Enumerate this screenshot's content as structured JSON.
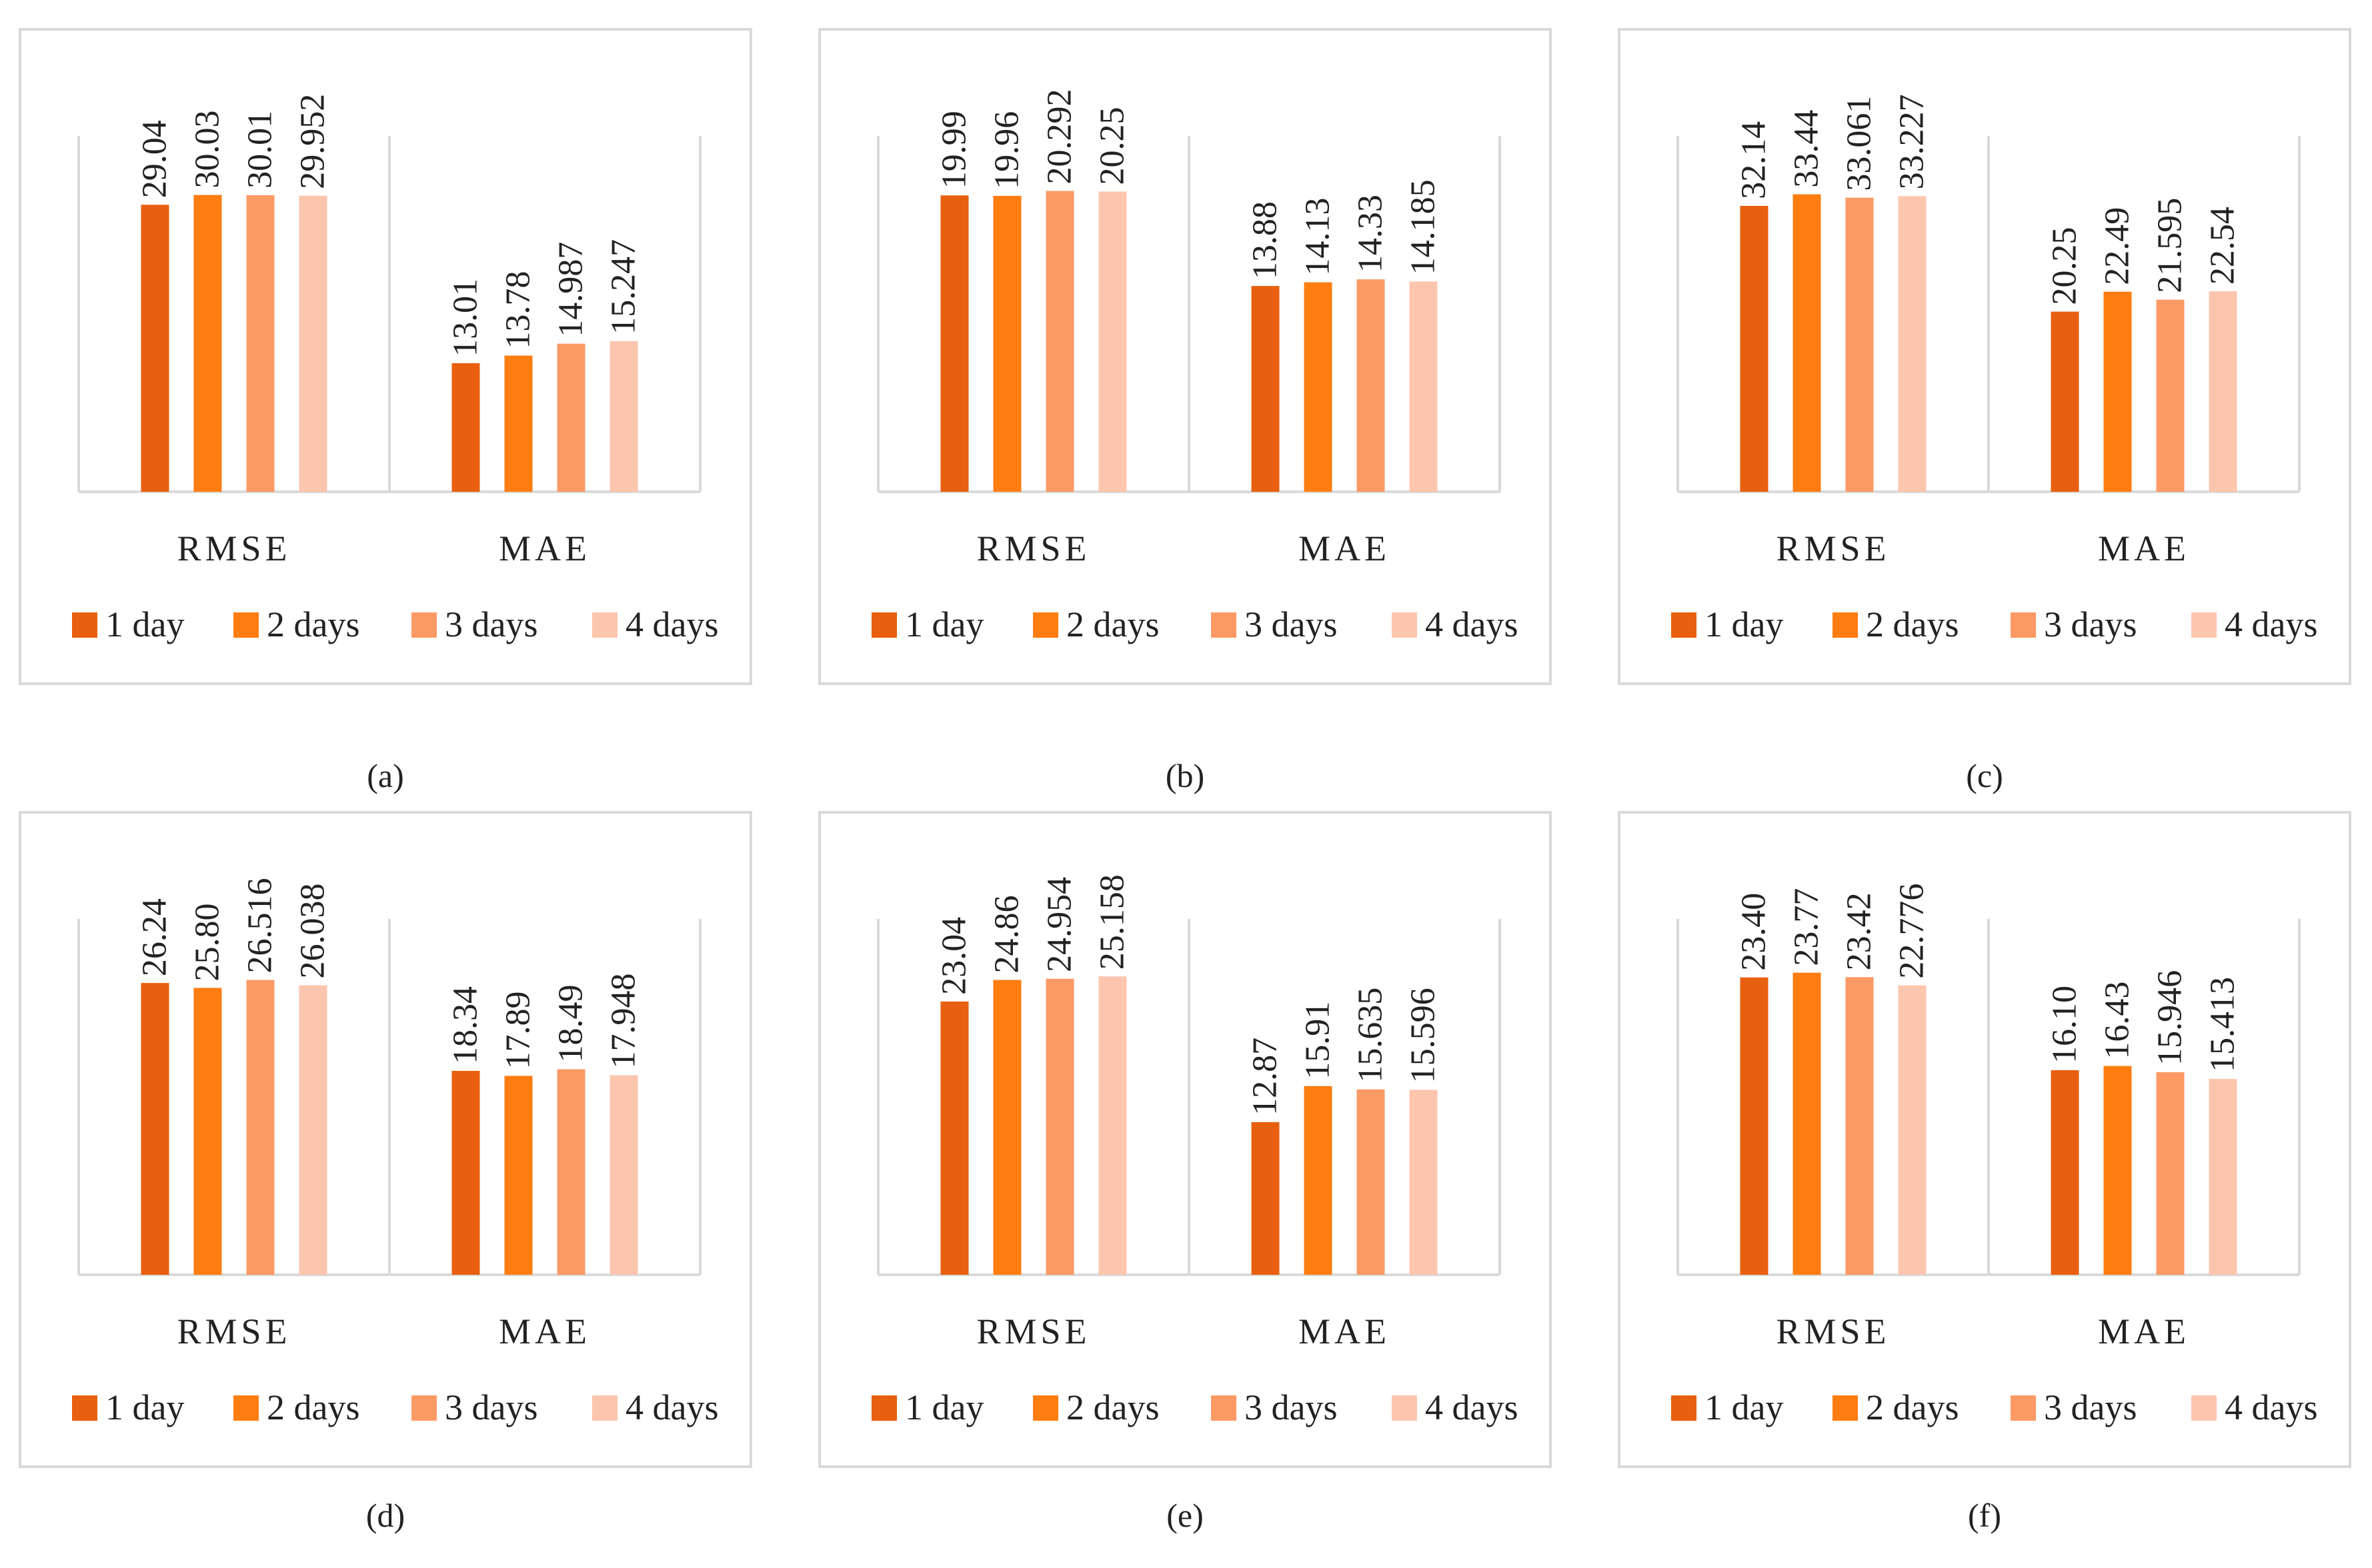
{
  "colors": {
    "series": [
      "#e8600f",
      "#ff7d11",
      "#fb9a65",
      "#fcc6ae"
    ],
    "axis": "#d9d9d9",
    "text": "#222222"
  },
  "charts": [
    {
      "caption": "(a)",
      "chart_data": {
        "type": "bar",
        "categories": [
          "RMSE",
          "MAE"
        ],
        "ylim": [
          0,
          36
        ],
        "legend": "bottom",
        "grid": false,
        "series": [
          {
            "name": "1 day",
            "values": [
              29.04,
              13.01
            ],
            "labels": [
              "29.04",
              "13.01"
            ]
          },
          {
            "name": "2 days",
            "values": [
              30.03,
              13.78
            ],
            "labels": [
              "30.03",
              "13.78"
            ]
          },
          {
            "name": "3 days",
            "values": [
              30.01,
              14.987
            ],
            "labels": [
              "30.01",
              "14.987"
            ]
          },
          {
            "name": "4 days",
            "values": [
              29.952,
              15.247
            ],
            "labels": [
              "29.952",
              "15.247"
            ]
          }
        ]
      }
    },
    {
      "caption": "(b)",
      "chart_data": {
        "type": "bar",
        "categories": [
          "RMSE",
          "MAE"
        ],
        "ylim": [
          0,
          24
        ],
        "legend": "bottom",
        "grid": false,
        "series": [
          {
            "name": "1 day",
            "values": [
              19.99,
              13.88
            ],
            "labels": [
              "19.99",
              "13.88"
            ]
          },
          {
            "name": "2 days",
            "values": [
              19.96,
              14.13
            ],
            "labels": [
              "19.96",
              "14.13"
            ]
          },
          {
            "name": "3 days",
            "values": [
              20.292,
              14.33
            ],
            "labels": [
              "20.292",
              "14.33"
            ]
          },
          {
            "name": "4 days",
            "values": [
              20.25,
              14.185
            ],
            "labels": [
              "20.25",
              "14.185"
            ]
          }
        ]
      }
    },
    {
      "caption": "(c)",
      "chart_data": {
        "type": "bar",
        "categories": [
          "RMSE",
          "MAE"
        ],
        "ylim": [
          0,
          40
        ],
        "legend": "bottom",
        "grid": false,
        "series": [
          {
            "name": "1 day",
            "values": [
              32.14,
              20.25
            ],
            "labels": [
              "32.14",
              "20.25"
            ]
          },
          {
            "name": "2 days",
            "values": [
              33.44,
              22.49
            ],
            "labels": [
              "33.44",
              "22.49"
            ]
          },
          {
            "name": "3 days",
            "values": [
              33.061,
              21.595
            ],
            "labels": [
              "33.061",
              "21.595"
            ]
          },
          {
            "name": "4 days",
            "values": [
              33.227,
              22.54
            ],
            "labels": [
              "33.227",
              "22.54"
            ]
          }
        ]
      }
    },
    {
      "caption": "(d)",
      "chart_data": {
        "type": "bar",
        "categories": [
          "RMSE",
          "MAE"
        ],
        "ylim": [
          0,
          32
        ],
        "legend": "bottom",
        "grid": false,
        "series": [
          {
            "name": "1 day",
            "values": [
              26.24,
              18.34
            ],
            "labels": [
              "26.24",
              "18.34"
            ]
          },
          {
            "name": "2 days",
            "values": [
              25.8,
              17.89
            ],
            "labels": [
              "25.80",
              "17.89"
            ]
          },
          {
            "name": "3 days",
            "values": [
              26.516,
              18.49
            ],
            "labels": [
              "26.516",
              "18.49"
            ]
          },
          {
            "name": "4 days",
            "values": [
              26.038,
              17.948
            ],
            "labels": [
              "26.038",
              "17.948"
            ]
          }
        ]
      }
    },
    {
      "caption": "(e)",
      "chart_data": {
        "type": "bar",
        "categories": [
          "RMSE",
          "MAE"
        ],
        "ylim": [
          0,
          30
        ],
        "legend": "bottom",
        "grid": false,
        "series": [
          {
            "name": "1 day",
            "values": [
              23.04,
              12.87
            ],
            "labels": [
              "23.04",
              "12.87"
            ]
          },
          {
            "name": "2 days",
            "values": [
              24.86,
              15.91
            ],
            "labels": [
              "24.86",
              "15.91"
            ]
          },
          {
            "name": "3 days",
            "values": [
              24.954,
              15.635
            ],
            "labels": [
              "24.954",
              "15.635"
            ]
          },
          {
            "name": "4 days",
            "values": [
              25.158,
              15.596
            ],
            "labels": [
              "25.158",
              "15.596"
            ]
          }
        ]
      }
    },
    {
      "caption": "(f)",
      "chart_data": {
        "type": "bar",
        "categories": [
          "RMSE",
          "MAE"
        ],
        "ylim": [
          0,
          28
        ],
        "legend": "bottom",
        "grid": false,
        "series": [
          {
            "name": "1 day",
            "values": [
              23.4,
              16.1
            ],
            "labels": [
              "23.40",
              "16.10"
            ]
          },
          {
            "name": "2 days",
            "values": [
              23.77,
              16.43
            ],
            "labels": [
              "23.77",
              "16.43"
            ]
          },
          {
            "name": "3 days",
            "values": [
              23.42,
              15.946
            ],
            "labels": [
              "23.42",
              "15.946"
            ]
          },
          {
            "name": "4 days",
            "values": [
              22.776,
              15.413
            ],
            "labels": [
              "22.776",
              "15.413"
            ]
          }
        ]
      }
    }
  ]
}
